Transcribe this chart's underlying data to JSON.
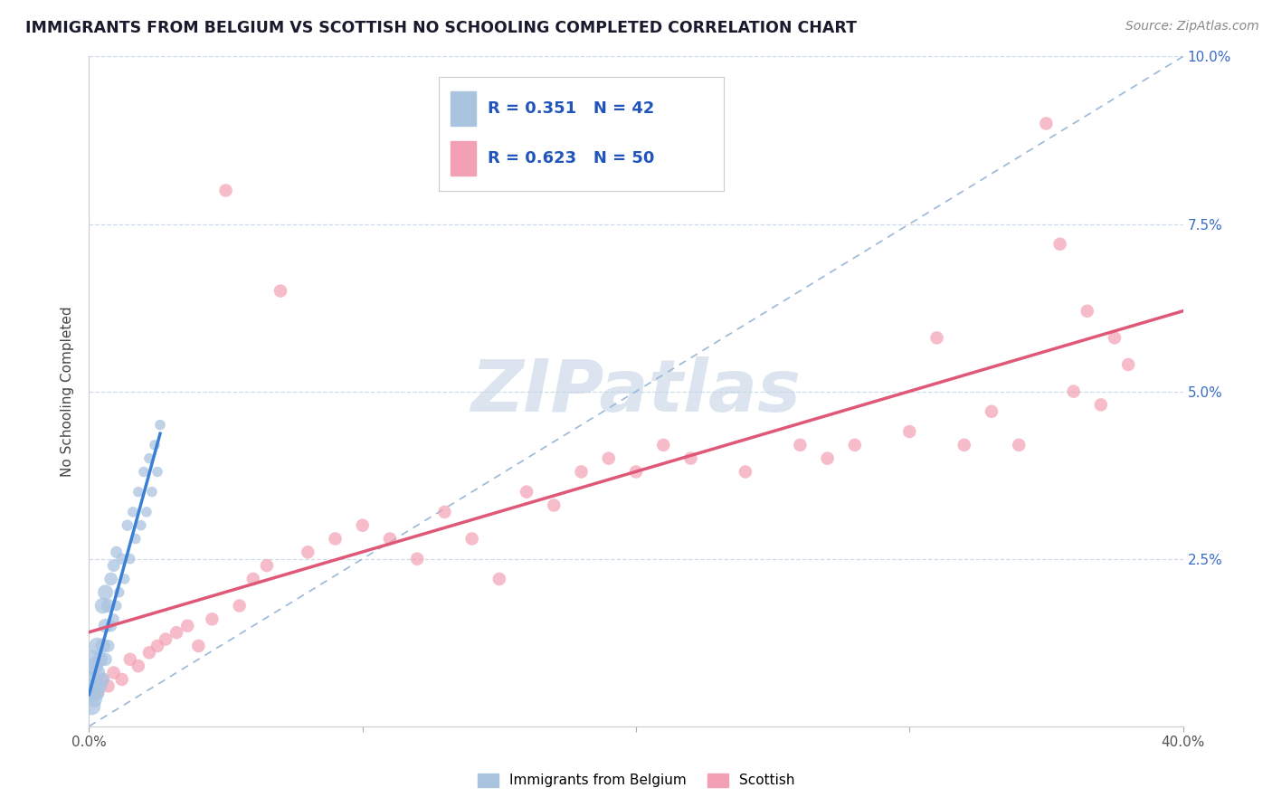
{
  "title": "IMMIGRANTS FROM BELGIUM VS SCOTTISH NO SCHOOLING COMPLETED CORRELATION CHART",
  "source": "Source: ZipAtlas.com",
  "ylabel": "No Schooling Completed",
  "xlim": [
    0.0,
    0.4
  ],
  "ylim": [
    0.0,
    0.1
  ],
  "xticks": [
    0.0,
    0.1,
    0.2,
    0.3,
    0.4
  ],
  "yticks": [
    0.0,
    0.025,
    0.05,
    0.075,
    0.1
  ],
  "xticklabels": [
    "0.0%",
    "",
    "",
    "",
    "40.0%"
  ],
  "yticklabels_right": [
    "",
    "2.5%",
    "5.0%",
    "7.5%",
    "10.0%"
  ],
  "R_belgium": 0.351,
  "N_belgium": 42,
  "R_scottish": 0.623,
  "N_scottish": 50,
  "color_belgium": "#aac4e0",
  "color_scottish": "#f4a0b4",
  "trendline_belgium": "#3a7fd5",
  "trendline_scottish": "#e05878",
  "refline_color": "#9ab8d8",
  "watermark": "ZIPatlas",
  "watermark_color": "#c5d5e5",
  "legend_label_belgium": "Immigrants from Belgium",
  "legend_label_scottish": "Scottish",
  "belgium_x": [
    0.001,
    0.001,
    0.001,
    0.001,
    0.002,
    0.002,
    0.002,
    0.003,
    0.003,
    0.003,
    0.004,
    0.004,
    0.005,
    0.005,
    0.005,
    0.006,
    0.006,
    0.006,
    0.007,
    0.007,
    0.008,
    0.008,
    0.009,
    0.009,
    0.01,
    0.01,
    0.011,
    0.012,
    0.013,
    0.014,
    0.015,
    0.016,
    0.017,
    0.018,
    0.019,
    0.02,
    0.021,
    0.022,
    0.023,
    0.024,
    0.025,
    0.026
  ],
  "belgium_y": [
    0.003,
    0.005,
    0.007,
    0.01,
    0.004,
    0.006,
    0.009,
    0.005,
    0.008,
    0.012,
    0.006,
    0.01,
    0.007,
    0.012,
    0.018,
    0.01,
    0.015,
    0.02,
    0.012,
    0.018,
    0.015,
    0.022,
    0.016,
    0.024,
    0.018,
    0.026,
    0.02,
    0.025,
    0.022,
    0.03,
    0.025,
    0.032,
    0.028,
    0.035,
    0.03,
    0.038,
    0.032,
    0.04,
    0.035,
    0.042,
    0.038,
    0.045
  ],
  "belgium_sizes": [
    200,
    180,
    160,
    220,
    150,
    170,
    190,
    140,
    160,
    180,
    130,
    150,
    120,
    140,
    160,
    110,
    130,
    150,
    100,
    120,
    90,
    110,
    80,
    100,
    70,
    90,
    70,
    80,
    70,
    80,
    70,
    70,
    70,
    70,
    70,
    70,
    70,
    70,
    70,
    70,
    70,
    70
  ],
  "scottish_x": [
    0.003,
    0.005,
    0.007,
    0.009,
    0.012,
    0.015,
    0.018,
    0.022,
    0.025,
    0.028,
    0.032,
    0.036,
    0.04,
    0.045,
    0.05,
    0.055,
    0.06,
    0.065,
    0.07,
    0.08,
    0.09,
    0.1,
    0.11,
    0.12,
    0.13,
    0.14,
    0.15,
    0.16,
    0.17,
    0.18,
    0.19,
    0.2,
    0.21,
    0.22,
    0.24,
    0.26,
    0.27,
    0.28,
    0.3,
    0.31,
    0.32,
    0.33,
    0.34,
    0.35,
    0.355,
    0.36,
    0.365,
    0.37,
    0.375,
    0.38
  ],
  "scottish_y": [
    0.005,
    0.007,
    0.006,
    0.008,
    0.007,
    0.01,
    0.009,
    0.011,
    0.012,
    0.013,
    0.014,
    0.015,
    0.012,
    0.016,
    0.08,
    0.018,
    0.022,
    0.024,
    0.065,
    0.026,
    0.028,
    0.03,
    0.028,
    0.025,
    0.032,
    0.028,
    0.022,
    0.035,
    0.033,
    0.038,
    0.04,
    0.038,
    0.042,
    0.04,
    0.038,
    0.042,
    0.04,
    0.042,
    0.044,
    0.058,
    0.042,
    0.047,
    0.042,
    0.09,
    0.072,
    0.05,
    0.062,
    0.048,
    0.058,
    0.054
  ],
  "scottish_sizes": [
    100,
    100,
    100,
    100,
    100,
    100,
    100,
    100,
    100,
    100,
    100,
    100,
    100,
    100,
    100,
    100,
    100,
    100,
    100,
    100,
    100,
    100,
    100,
    100,
    100,
    100,
    100,
    100,
    100,
    100,
    100,
    100,
    100,
    100,
    100,
    100,
    100,
    100,
    100,
    100,
    100,
    100,
    100,
    100,
    100,
    100,
    100,
    100,
    100,
    100
  ]
}
